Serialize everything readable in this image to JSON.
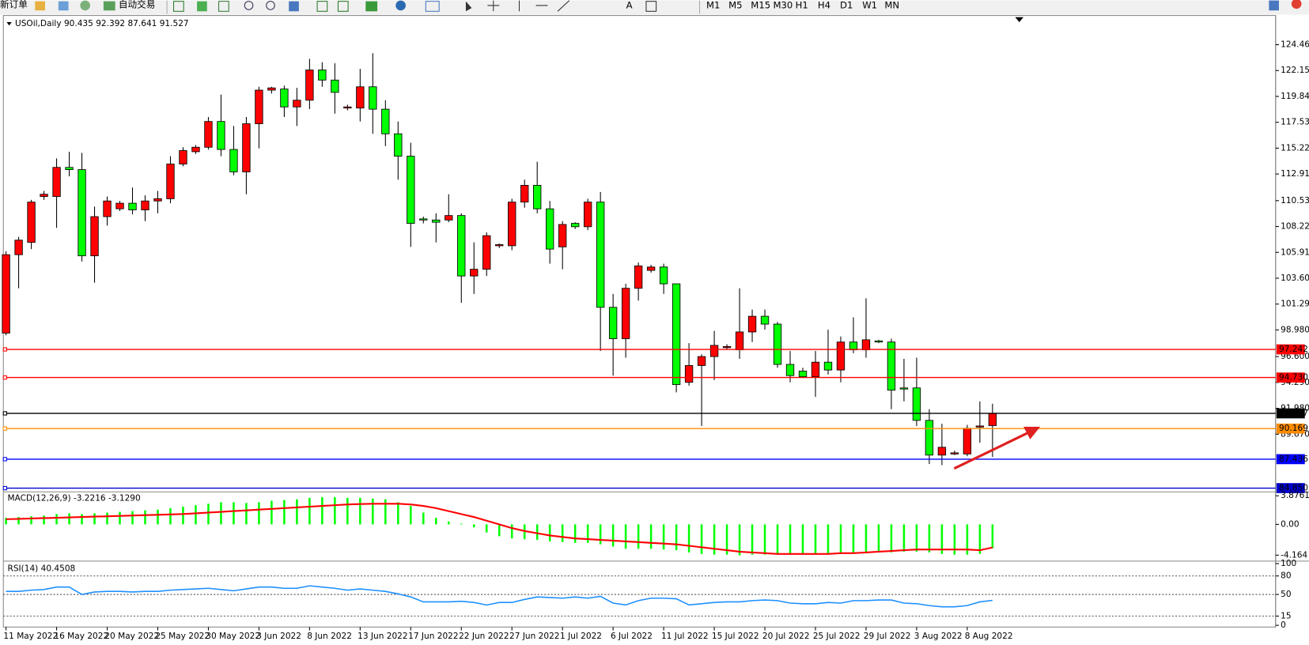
{
  "toolbar": {
    "buttons": [
      "新订单",
      "自动交易"
    ],
    "timeframes": [
      "M1",
      "M5",
      "M15",
      "M30",
      "H1",
      "H4",
      "D1",
      "W1",
      "MN"
    ]
  },
  "chart_data": {
    "type": "candlestick",
    "title": "USOil,Daily 90.435 92.392 87.641 91.527",
    "up_color": "#ff0000",
    "down_color": "#00ff00",
    "categories": [
      "11 May 2022",
      null,
      null,
      null,
      "16 May 2022",
      null,
      null,
      null,
      "20 May 2022",
      null,
      null,
      null,
      "25 May 2022",
      null,
      null,
      null,
      "30 May 2022",
      null,
      null,
      null,
      "3 Jun 2022",
      null,
      null,
      null,
      "8 Jun 2022",
      null,
      null,
      null,
      "13 Jun 2022",
      null,
      null,
      null,
      "17 Jun 2022",
      null,
      null,
      null,
      "22 Jun 2022",
      null,
      null,
      null,
      "27 Jun 2022",
      null,
      null,
      null,
      "1 Jul 2022",
      null,
      null,
      null,
      "6 Jul 2022",
      null,
      null,
      null,
      "11 Jul 2022",
      null,
      null,
      null,
      "15 Jul 2022",
      null,
      null,
      null,
      "20 Jul 2022",
      null,
      null,
      null,
      "25 Jul 2022",
      null,
      null,
      null,
      "29 Jul 2022",
      null,
      null,
      null,
      "3 Aug 2022",
      null,
      null,
      null,
      "8 Aug 2022",
      null,
      null
    ],
    "open": [
      98.7,
      105.7,
      106.8,
      110.9,
      110.9,
      113.5,
      113.3,
      105.6,
      109.1,
      109.8,
      110.3,
      109.7,
      110.5,
      110.7,
      113.8,
      114.9,
      115.3,
      117.6,
      115.1,
      113.1,
      117.4,
      120.4,
      120.5,
      118.9,
      119.5,
      122.2,
      121.3,
      118.8,
      118.8,
      120.7,
      118.7,
      116.5,
      114.5,
      108.9,
      108.8,
      108.8,
      109.2,
      103.8,
      104.4,
      106.5,
      106.5,
      110.4,
      111.9,
      109.8,
      106.4,
      108.5,
      108.2,
      110.4,
      101.0,
      98.2,
      102.7,
      104.3,
      104.6,
      103.1,
      94.3,
      95.8,
      96.6,
      97.4,
      97.2,
      98.8,
      100.2,
      99.5,
      95.9,
      95.3,
      94.8,
      96.1,
      95.4,
      97.9,
      97.2,
      98.0,
      97.9,
      93.8,
      93.8,
      90.9,
      87.8,
      87.9,
      87.9,
      90.3,
      90.435
    ],
    "high": [
      106.0,
      107.3,
      110.6,
      111.4,
      114.3,
      114.9,
      114.8,
      110.0,
      110.9,
      110.5,
      111.7,
      111.0,
      111.4,
      114.5,
      115.3,
      115.5,
      118.0,
      120.0,
      117.2,
      118.0,
      120.7,
      120.7,
      120.8,
      120.6,
      123.2,
      122.9,
      122.8,
      119.1,
      122.3,
      123.7,
      119.5,
      117.6,
      115.7,
      109.1,
      109.4,
      111.1,
      109.4,
      106.8,
      107.7,
      106.7,
      110.7,
      112.4,
      114.0,
      110.5,
      108.7,
      108.6,
      110.7,
      111.3,
      102.2,
      103.1,
      105.0,
      104.8,
      104.9,
      103.1,
      97.8,
      96.8,
      98.9,
      97.7,
      102.7,
      100.8,
      100.8,
      99.7,
      97.1,
      95.6,
      97.1,
      99.0,
      98.4,
      100.1,
      101.8,
      98.1,
      98.2,
      96.4,
      96.5,
      91.9,
      90.6,
      88.2,
      90.5,
      92.6,
      92.392
    ],
    "low": [
      98.5,
      102.7,
      106.2,
      110.6,
      108.1,
      112.7,
      105.1,
      103.2,
      108.3,
      109.6,
      109.3,
      108.7,
      109.4,
      110.3,
      113.6,
      114.7,
      115.1,
      114.5,
      112.8,
      111.1,
      115.2,
      120.1,
      118.0,
      117.2,
      118.7,
      120.7,
      118.3,
      118.6,
      117.6,
      116.5,
      115.4,
      112.4,
      106.4,
      108.5,
      106.8,
      108.6,
      101.4,
      102.2,
      103.8,
      106.3,
      106.1,
      109.9,
      109.4,
      104.9,
      104.4,
      108.0,
      107.9,
      97.1,
      94.9,
      96.5,
      101.6,
      104.1,
      102.2,
      93.4,
      94.0,
      90.4,
      94.5,
      97.2,
      96.4,
      97.9,
      99.0,
      95.6,
      94.3,
      94.7,
      93.0,
      95.0,
      94.3,
      96.9,
      96.5,
      97.8,
      91.9,
      92.6,
      90.4,
      87.0,
      86.9,
      87.8,
      87.7,
      88.9,
      87.641
    ],
    "close": [
      105.7,
      107.0,
      110.4,
      111.1,
      113.5,
      113.3,
      105.6,
      109.1,
      110.5,
      110.3,
      109.7,
      110.5,
      110.7,
      113.8,
      115.0,
      115.3,
      117.6,
      115.1,
      113.1,
      117.4,
      120.4,
      120.6,
      118.9,
      119.5,
      122.2,
      121.3,
      120.2,
      118.9,
      120.7,
      118.7,
      116.5,
      114.5,
      108.5,
      108.8,
      108.6,
      109.2,
      103.8,
      104.4,
      107.4,
      106.6,
      110.4,
      111.9,
      109.8,
      106.2,
      108.4,
      108.2,
      110.4,
      101.0,
      98.2,
      102.7,
      104.7,
      104.6,
      103.1,
      94.1,
      95.8,
      96.6,
      97.6,
      97.5,
      98.8,
      100.2,
      99.5,
      95.9,
      94.9,
      94.8,
      96.1,
      95.4,
      97.9,
      97.2,
      98.1,
      97.9,
      93.6,
      93.7,
      90.9,
      87.8,
      88.5,
      88.0,
      90.2,
      90.4,
      91.527
    ],
    "ylim": [
      84.59,
      126.92
    ],
    "yticks": [
      {
        "value": 124.46,
        "label": "124.460"
      },
      {
        "value": 122.15,
        "label": "122.150"
      },
      {
        "value": 119.84,
        "label": "119.840"
      },
      {
        "value": 117.53,
        "label": "117.530"
      },
      {
        "value": 115.22,
        "label": "115.220"
      },
      {
        "value": 112.91,
        "label": "112.910"
      },
      {
        "value": 110.53,
        "label": "110.530"
      },
      {
        "value": 108.22,
        "label": "108.220"
      },
      {
        "value": 105.91,
        "label": "105.910"
      },
      {
        "value": 103.6,
        "label": "103.600"
      },
      {
        "value": 101.29,
        "label": "101.290"
      },
      {
        "value": 98.98,
        "label": "98.980"
      },
      {
        "value": 96.6,
        "label": "96.600"
      },
      {
        "value": 94.29,
        "label": "94.290"
      },
      {
        "value": 91.98,
        "label": "91.980"
      },
      {
        "value": 89.67,
        "label": "89.670"
      }
    ],
    "levels": [
      {
        "value": 97.242,
        "color": "#ff0000"
      },
      {
        "value": 94.73,
        "label": "94.730",
        "color": "#ff0000"
      },
      {
        "value": 91.527,
        "color": "#000000"
      },
      {
        "value": 90.169,
        "color": "#ff8c00"
      },
      {
        "value": 87.436,
        "color": "#0000ff"
      },
      {
        "value": 84.85,
        "label": "84.850",
        "color": "#0000cc"
      }
    ],
    "macd": {
      "title": "MACD(12,26,9) -3.2216 -3.1290",
      "color": "#00ff00",
      "signal_color": "#ff0000",
      "histogram": [
        0.9,
        1.0,
        1.1,
        1.2,
        1.4,
        1.5,
        1.4,
        1.5,
        1.6,
        1.7,
        1.8,
        1.9,
        2.0,
        2.2,
        2.4,
        2.6,
        2.8,
        3.0,
        3.0,
        2.9,
        3.0,
        3.2,
        3.3,
        3.4,
        3.6,
        3.7,
        3.7,
        3.6,
        3.6,
        3.5,
        3.4,
        3.0,
        2.5,
        1.6,
        0.9,
        0.4,
        0.1,
        -0.4,
        -1.1,
        -1.6,
        -1.9,
        -2.0,
        -2.1,
        -2.3,
        -2.4,
        -2.5,
        -2.5,
        -2.7,
        -3.0,
        -3.3,
        -3.3,
        -3.3,
        -3.4,
        -3.5,
        -3.8,
        -4.0,
        -4.1,
        -4.1,
        -4.2,
        -4.1,
        -4.1,
        -4.0,
        -4.0,
        -4.0,
        -4.0,
        -3.9,
        -3.9,
        -3.9,
        -3.8,
        -3.8,
        -3.8,
        -3.7,
        -3.7,
        -3.8,
        -4.0,
        -4.1,
        -4.1,
        -4.0,
        -3.2216
      ],
      "signal": [
        0.7,
        0.75,
        0.8,
        0.85,
        0.9,
        0.95,
        1.0,
        1.05,
        1.1,
        1.15,
        1.2,
        1.25,
        1.3,
        1.35,
        1.4,
        1.5,
        1.6,
        1.7,
        1.8,
        1.9,
        2.0,
        2.1,
        2.2,
        2.3,
        2.4,
        2.5,
        2.6,
        2.7,
        2.75,
        2.8,
        2.8,
        2.8,
        2.7,
        2.5,
        2.2,
        1.8,
        1.4,
        1.0,
        0.5,
        0.0,
        -0.5,
        -0.9,
        -1.2,
        -1.5,
        -1.7,
        -1.9,
        -2.0,
        -2.1,
        -2.2,
        -2.3,
        -2.4,
        -2.5,
        -2.6,
        -2.7,
        -2.9,
        -3.1,
        -3.3,
        -3.5,
        -3.7,
        -3.8,
        -3.9,
        -4.0,
        -4.0,
        -4.0,
        -4.0,
        -4.0,
        -3.9,
        -3.9,
        -3.8,
        -3.7,
        -3.6,
        -3.5,
        -3.4,
        -3.4,
        -3.4,
        -3.4,
        -3.4,
        -3.5,
        -3.129
      ],
      "ylim": [
        -4.86,
        4.18
      ],
      "yticks": [
        3.8761,
        {
          "value": 0,
          "label": "0.00"
        },
        -4.164
      ]
    },
    "rsi": {
      "title": "RSI(14) 40.4508",
      "color": "#1e90ff",
      "values": [
        55,
        55,
        57,
        58,
        62,
        62,
        50,
        54,
        55,
        55,
        54,
        55,
        55,
        57,
        58,
        59,
        60,
        58,
        56,
        59,
        62,
        62,
        60,
        60,
        64,
        62,
        60,
        57,
        59,
        57,
        55,
        51,
        46,
        38,
        38,
        38,
        39,
        37,
        33,
        37,
        37,
        42,
        46,
        45,
        44,
        46,
        44,
        47,
        36,
        33,
        40,
        44,
        44,
        43,
        33,
        35,
        37,
        38,
        38,
        40,
        41,
        40,
        36,
        35,
        35,
        37,
        36,
        40,
        40,
        41,
        41,
        36,
        35,
        32,
        30,
        30,
        32,
        38,
        40.4508
      ],
      "ylim": [
        -1.4,
        102.7
      ],
      "yticks": [
        100,
        80,
        50,
        15,
        0
      ],
      "levels": [
        80,
        50,
        15
      ]
    }
  }
}
